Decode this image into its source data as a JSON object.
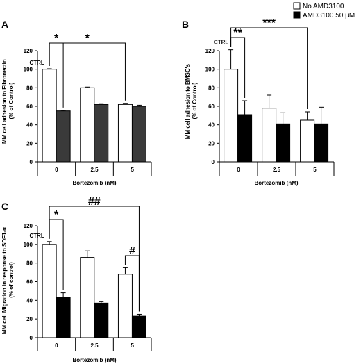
{
  "legend": {
    "items": [
      {
        "label": "No AMD3100",
        "color": "#ffffff"
      },
      {
        "label": "AMD3100 50 μM",
        "color": "#000000"
      }
    ]
  },
  "chart_data": [
    {
      "panel": "A",
      "type": "bar",
      "xlabel": "Bortezomib (nM)",
      "ylabel": [
        "MM cell adhesion to Fibronectin",
        "(% of Control)"
      ],
      "categories": [
        "0",
        "2.5",
        "5"
      ],
      "ylim": [
        0,
        120
      ],
      "yticks": [
        0,
        20,
        40,
        60,
        80,
        100,
        120
      ],
      "series": [
        {
          "name": "No AMD3100",
          "values": [
            100,
            80,
            62
          ],
          "errors": [
            0.5,
            0.8,
            1.2
          ],
          "color": "#ffffff"
        },
        {
          "name": "AMD3100 50 μM",
          "values": [
            55,
            62,
            60
          ],
          "errors": [
            0.6,
            0.8,
            1.2
          ],
          "color": "#3a3a3a"
        }
      ],
      "ctrl_label": "CTRL",
      "annotations": [
        {
          "text": "*",
          "from": [
            0,
            0
          ],
          "to": [
            0,
            1
          ]
        },
        {
          "text": "*",
          "from": [
            0,
            0
          ],
          "to": [
            2,
            0
          ]
        }
      ]
    },
    {
      "panel": "B",
      "type": "bar",
      "xlabel": "Bortezomib (nM)",
      "ylabel": [
        "MM cell adhesion to BMSC's",
        "(% of Control)"
      ],
      "categories": [
        "0",
        "2.5",
        "5"
      ],
      "ylim": [
        0,
        120
      ],
      "yticks": [
        0,
        20,
        40,
        60,
        80,
        100,
        120
      ],
      "series": [
        {
          "name": "No AMD3100",
          "values": [
            100,
            58,
            45
          ],
          "errors": [
            21,
            14,
            9
          ],
          "color": "#ffffff"
        },
        {
          "name": "AMD3100 50 μM",
          "values": [
            51,
            41,
            41
          ],
          "errors": [
            15,
            12,
            18
          ],
          "color": "#000000"
        }
      ],
      "ctrl_label": "CTRL",
      "annotations": [
        {
          "text": "**",
          "from": [
            0,
            0
          ],
          "to": [
            0,
            1
          ]
        },
        {
          "text": "***",
          "from": [
            0,
            0
          ],
          "to": [
            2,
            0
          ]
        }
      ]
    },
    {
      "panel": "C",
      "type": "bar",
      "xlabel": "Bortezomib (nM)",
      "ylabel": [
        "MM cell Migration in response to SDF1-α",
        "(% of control)"
      ],
      "categories": [
        "0",
        "2.5",
        "5"
      ],
      "ylim": [
        0,
        120
      ],
      "yticks": [
        0,
        20,
        40,
        60,
        80,
        100,
        120
      ],
      "series": [
        {
          "name": "No AMD3100",
          "values": [
            100,
            86,
            68
          ],
          "errors": [
            3,
            7,
            7
          ],
          "color": "#ffffff"
        },
        {
          "name": "AMD3100 50 μM",
          "values": [
            43,
            37,
            23
          ],
          "errors": [
            5,
            1.5,
            2
          ],
          "color": "#000000"
        }
      ],
      "ctrl_label": "CTRL",
      "annotations": [
        {
          "text": "*",
          "from": [
            0,
            0
          ],
          "to": [
            0,
            1
          ]
        },
        {
          "text": "##",
          "from": [
            0,
            0
          ],
          "to": [
            2,
            1
          ]
        },
        {
          "text": "#",
          "from": [
            2,
            0
          ],
          "to": [
            2,
            1
          ]
        }
      ]
    }
  ]
}
